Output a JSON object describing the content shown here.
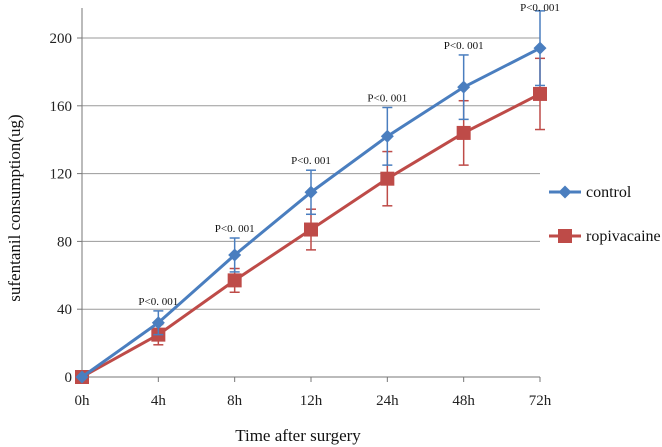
{
  "chart_data": {
    "type": "line",
    "title": "",
    "xlabel": "Time after surgery",
    "ylabel": "sufentanil consumption(ug)",
    "categories": [
      "0h",
      "4h",
      "8h",
      "12h",
      "24h",
      "48h",
      "72h"
    ],
    "ylim": [
      0,
      200
    ],
    "yticks": [
      0,
      40,
      80,
      120,
      160,
      200
    ],
    "grid": true,
    "legend_position": "right",
    "series": [
      {
        "name": "control",
        "color": "#4a7ebf",
        "marker": "diamond",
        "values": [
          0,
          32,
          72,
          109,
          142,
          171,
          194
        ],
        "error": [
          0,
          7,
          10,
          13,
          17,
          19,
          22
        ]
      },
      {
        "name": "ropivacaine",
        "color": "#be4b48",
        "marker": "square",
        "values": [
          0,
          25,
          57,
          87,
          117,
          144,
          167
        ],
        "error": [
          0,
          6,
          7,
          12,
          16,
          19,
          21
        ]
      }
    ],
    "annotations": [
      {
        "category": "4h",
        "text": "P<0. 001"
      },
      {
        "category": "8h",
        "text": "P<0. 001"
      },
      {
        "category": "12h",
        "text": "P<0. 001"
      },
      {
        "category": "24h",
        "text": "P<0. 001"
      },
      {
        "category": "48h",
        "text": "P<0. 001"
      },
      {
        "category": "72h",
        "text": "P<0. 001"
      }
    ]
  }
}
